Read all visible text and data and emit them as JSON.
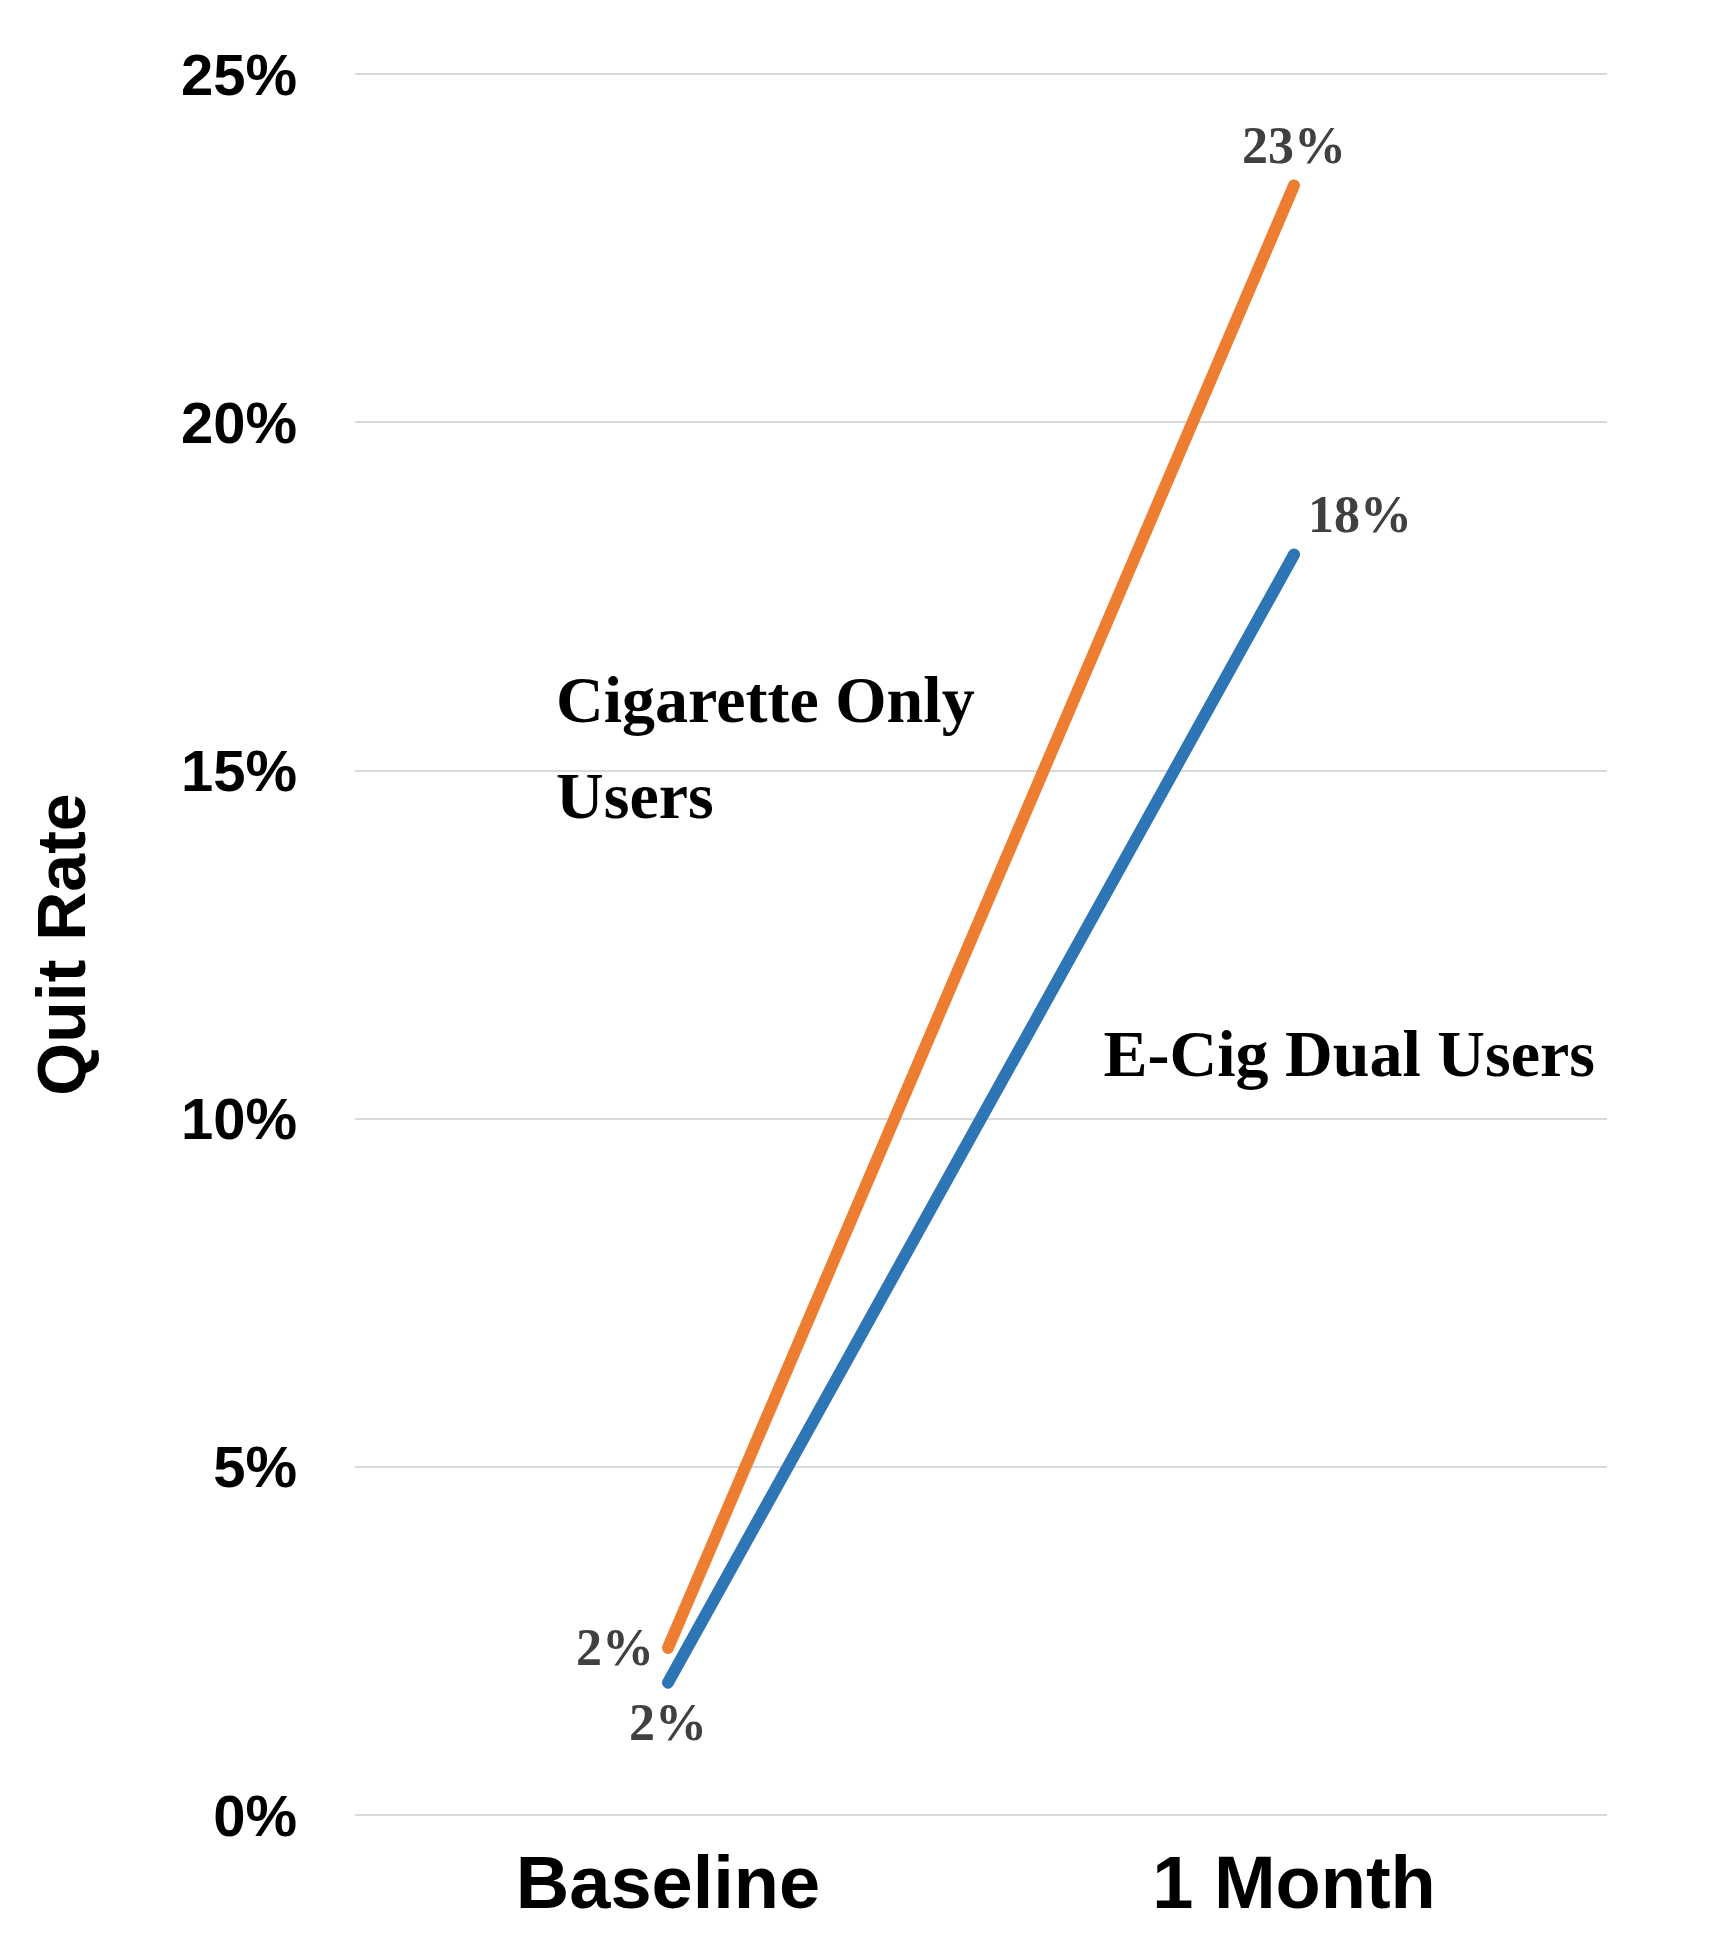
{
  "chart_data": {
    "type": "line",
    "ylabel": "Quit Rate",
    "categories": [
      "Baseline",
      "1 Month"
    ],
    "series": [
      {
        "name": "Cigarette Only Users",
        "color": "#ed7d31",
        "values": [
          2.4,
          23.4
        ],
        "value_labels": [
          "2%",
          "23%"
        ]
      },
      {
        "name": "E-Cig Dual Users",
        "color": "#2e75b6",
        "values": [
          1.9,
          18.1
        ],
        "value_labels": [
          "2%",
          "18%"
        ]
      }
    ],
    "ylim": [
      0,
      25
    ],
    "yticks": [
      {
        "value": 0,
        "label": "0%"
      },
      {
        "value": 5,
        "label": "5%"
      },
      {
        "value": 10,
        "label": "10%"
      },
      {
        "value": 15,
        "label": "15%"
      },
      {
        "value": 20,
        "label": "20%"
      },
      {
        "value": 25,
        "label": "25%"
      }
    ],
    "grid": "y",
    "legend": false,
    "marker": "none",
    "line_style": "solid"
  }
}
